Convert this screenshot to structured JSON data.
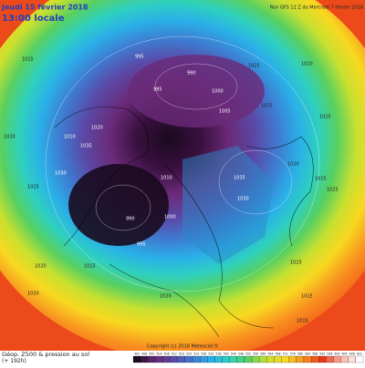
{
  "header": {
    "date": "Jeudi 15 février 2018",
    "local_time": "13:00 locale",
    "run": "Run GFS 12 Z du Mercredi 7 février 2018"
  },
  "map": {
    "pressure_labels": [
      "1015",
      "1020",
      "1025",
      "995",
      "990",
      "1000",
      "1005",
      "1010",
      "1020",
      "1030",
      "1035",
      "1025",
      "1015",
      "1020",
      "1025",
      "1035",
      "1030",
      "1010",
      "1020",
      "1015",
      "1025",
      "1015",
      "1020",
      "1020",
      "1015",
      "1025",
      "1015",
      "1020",
      "990",
      "995",
      "1000",
      "985"
    ],
    "copyright": "Copyright (c) 2018 Meteociel.fr"
  },
  "footer": {
    "title": "Géop. Z500 & pression au sol",
    "lead": "(+ 192h)"
  },
  "colorbar": {
    "labels": [
      492,
      496,
      500,
      504,
      508,
      512,
      516,
      520,
      524,
      528,
      532,
      536,
      540,
      544,
      548,
      552,
      556,
      560,
      564,
      568,
      572,
      576,
      580,
      584,
      588,
      592,
      596,
      600,
      604,
      608,
      612
    ]
  }
}
